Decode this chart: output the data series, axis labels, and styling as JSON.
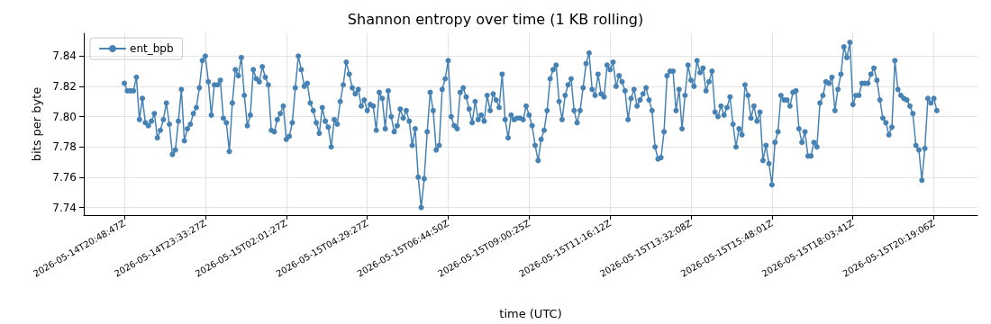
{
  "chart_data": {
    "type": "line",
    "title": "Shannon entropy over time (1 KB rolling)",
    "xlabel": "time (UTC)",
    "ylabel": "bits per byte",
    "categories": [
      "2026-05-14T20:48:47Z",
      null,
      null,
      null,
      null,
      null,
      null,
      null,
      null,
      null,
      null,
      null,
      null,
      null,
      null,
      null,
      null,
      null,
      null,
      null,
      null,
      null,
      null,
      null,
      null,
      null,
      null,
      "2026-05-14T23:33:27Z",
      null,
      null,
      null,
      null,
      null,
      null,
      null,
      null,
      null,
      null,
      null,
      null,
      null,
      null,
      null,
      null,
      null,
      null,
      null,
      null,
      null,
      null,
      null,
      null,
      null,
      null,
      "2026-05-15T02:01:27Z",
      null,
      null,
      null,
      null,
      null,
      null,
      null,
      null,
      null,
      null,
      null,
      null,
      null,
      null,
      null,
      null,
      null,
      null,
      null,
      null,
      null,
      null,
      null,
      null,
      null,
      null,
      "2026-05-15T04:29:27Z",
      null,
      null,
      null,
      null,
      null,
      null,
      null,
      null,
      null,
      null,
      null,
      null,
      null,
      null,
      null,
      null,
      null,
      null,
      null,
      null,
      null,
      null,
      null,
      null,
      null,
      null,
      "2026-05-15T06:44:50Z",
      null,
      null,
      null,
      null,
      null,
      null,
      null,
      null,
      null,
      null,
      null,
      null,
      null,
      null,
      null,
      null,
      null,
      null,
      null,
      null,
      null,
      null,
      null,
      null,
      null,
      null,
      "2026-05-15T09:00:25Z",
      null,
      null,
      null,
      null,
      null,
      null,
      null,
      null,
      null,
      null,
      null,
      null,
      null,
      null,
      null,
      null,
      null,
      null,
      null,
      null,
      null,
      null,
      null,
      null,
      null,
      null,
      "2026-05-15T11:16:12Z",
      null,
      null,
      null,
      null,
      null,
      null,
      null,
      null,
      null,
      null,
      null,
      null,
      null,
      null,
      null,
      null,
      null,
      null,
      null,
      null,
      null,
      null,
      null,
      null,
      null,
      null,
      "2026-05-15T13:32:08Z",
      null,
      null,
      null,
      null,
      null,
      null,
      null,
      null,
      null,
      null,
      null,
      null,
      null,
      null,
      null,
      null,
      null,
      null,
      null,
      null,
      null,
      null,
      null,
      null,
      null,
      null,
      "2026-05-15T15:48:01Z",
      null,
      null,
      null,
      null,
      null,
      null,
      null,
      null,
      null,
      null,
      null,
      null,
      null,
      null,
      null,
      null,
      null,
      null,
      null,
      null,
      null,
      null,
      null,
      null,
      null,
      null,
      "2026-05-15T18:03:41Z",
      null,
      null,
      null,
      null,
      null,
      null,
      null,
      null,
      null,
      null,
      null,
      null,
      null,
      null,
      null,
      null,
      null,
      null,
      null,
      null,
      null,
      null,
      null,
      null,
      null,
      null,
      "2026-05-15T20:19:06Z",
      null
    ],
    "series": [
      {
        "name": "ent_bpb",
        "color": "#4682b4",
        "values": [
          7.822,
          7.817,
          7.817,
          7.817,
          7.826,
          7.798,
          7.812,
          7.796,
          7.794,
          7.797,
          7.802,
          7.786,
          7.791,
          7.798,
          7.809,
          7.795,
          7.775,
          7.778,
          7.797,
          7.818,
          7.784,
          7.792,
          7.795,
          7.802,
          7.806,
          7.819,
          7.837,
          7.84,
          7.823,
          7.801,
          7.821,
          7.821,
          7.824,
          7.799,
          7.796,
          7.777,
          7.809,
          7.831,
          7.827,
          7.839,
          7.814,
          7.794,
          7.801,
          7.831,
          7.825,
          7.823,
          7.833,
          7.826,
          7.821,
          7.791,
          7.79,
          7.798,
          7.802,
          7.807,
          7.785,
          7.787,
          7.796,
          7.819,
          7.84,
          7.831,
          7.82,
          7.822,
          7.809,
          7.804,
          7.796,
          7.789,
          7.806,
          7.797,
          7.793,
          7.78,
          7.798,
          7.795,
          7.81,
          7.821,
          7.836,
          7.828,
          7.819,
          7.815,
          7.818,
          7.807,
          7.811,
          7.804,
          7.808,
          7.807,
          7.791,
          7.816,
          7.812,
          7.792,
          7.817,
          7.8,
          7.79,
          7.794,
          7.805,
          7.799,
          7.804,
          7.797,
          7.781,
          7.792,
          7.76,
          7.74,
          7.759,
          7.79,
          7.816,
          7.804,
          7.778,
          7.781,
          7.818,
          7.825,
          7.837,
          7.8,
          7.794,
          7.792,
          7.816,
          7.819,
          7.813,
          7.805,
          7.796,
          7.81,
          7.798,
          7.801,
          7.797,
          7.814,
          7.804,
          7.815,
          7.811,
          7.806,
          7.828,
          7.798,
          7.786,
          7.801,
          7.798,
          7.799,
          7.799,
          7.798,
          7.807,
          7.801,
          7.794,
          7.781,
          7.771,
          7.785,
          7.791,
          7.804,
          7.825,
          7.831,
          7.834,
          7.81,
          7.798,
          7.814,
          7.821,
          7.825,
          7.804,
          7.796,
          7.804,
          7.819,
          7.835,
          7.842,
          7.818,
          7.814,
          7.828,
          7.815,
          7.813,
          7.834,
          7.831,
          7.836,
          7.82,
          7.827,
          7.823,
          7.817,
          7.798,
          7.812,
          7.818,
          7.807,
          7.811,
          7.815,
          7.819,
          7.811,
          7.804,
          7.78,
          7.772,
          7.773,
          7.79,
          7.827,
          7.83,
          7.83,
          7.804,
          7.818,
          7.792,
          7.814,
          7.834,
          7.824,
          7.82,
          7.837,
          7.829,
          7.832,
          7.817,
          7.823,
          7.83,
          7.803,
          7.8,
          7.807,
          7.801,
          7.806,
          7.813,
          7.795,
          7.78,
          7.792,
          7.788,
          7.821,
          7.814,
          7.799,
          7.807,
          7.797,
          7.803,
          7.771,
          7.781,
          7.769,
          7.755,
          7.783,
          7.79,
          7.814,
          7.811,
          7.811,
          7.807,
          7.816,
          7.817,
          7.792,
          7.783,
          7.79,
          7.774,
          7.774,
          7.783,
          7.78,
          7.809,
          7.814,
          7.823,
          7.822,
          7.826,
          7.804,
          7.818,
          7.828,
          7.846,
          7.839,
          7.849,
          7.808,
          7.814,
          7.814,
          7.822,
          7.822,
          7.822,
          7.828,
          7.832,
          7.824,
          7.811,
          7.799,
          7.796,
          7.788,
          7.793,
          7.837,
          7.818,
          7.814,
          7.812,
          7.811,
          7.807,
          7.802,
          7.781,
          7.778,
          7.758,
          7.779,
          7.812,
          7.809,
          7.812,
          7.804
        ]
      }
    ],
    "ylim": [
      7.735,
      7.855
    ],
    "yticks": [
      {
        "value": 7.74,
        "label": "7.74"
      },
      {
        "value": 7.76,
        "label": "7.76"
      },
      {
        "value": 7.78,
        "label": "7.78"
      },
      {
        "value": 7.8,
        "label": "7.80"
      },
      {
        "value": 7.82,
        "label": "7.82"
      },
      {
        "value": 7.84,
        "label": "7.84"
      }
    ],
    "grid": true,
    "legend": "top left",
    "marker": "circle",
    "line_style": "solid"
  }
}
